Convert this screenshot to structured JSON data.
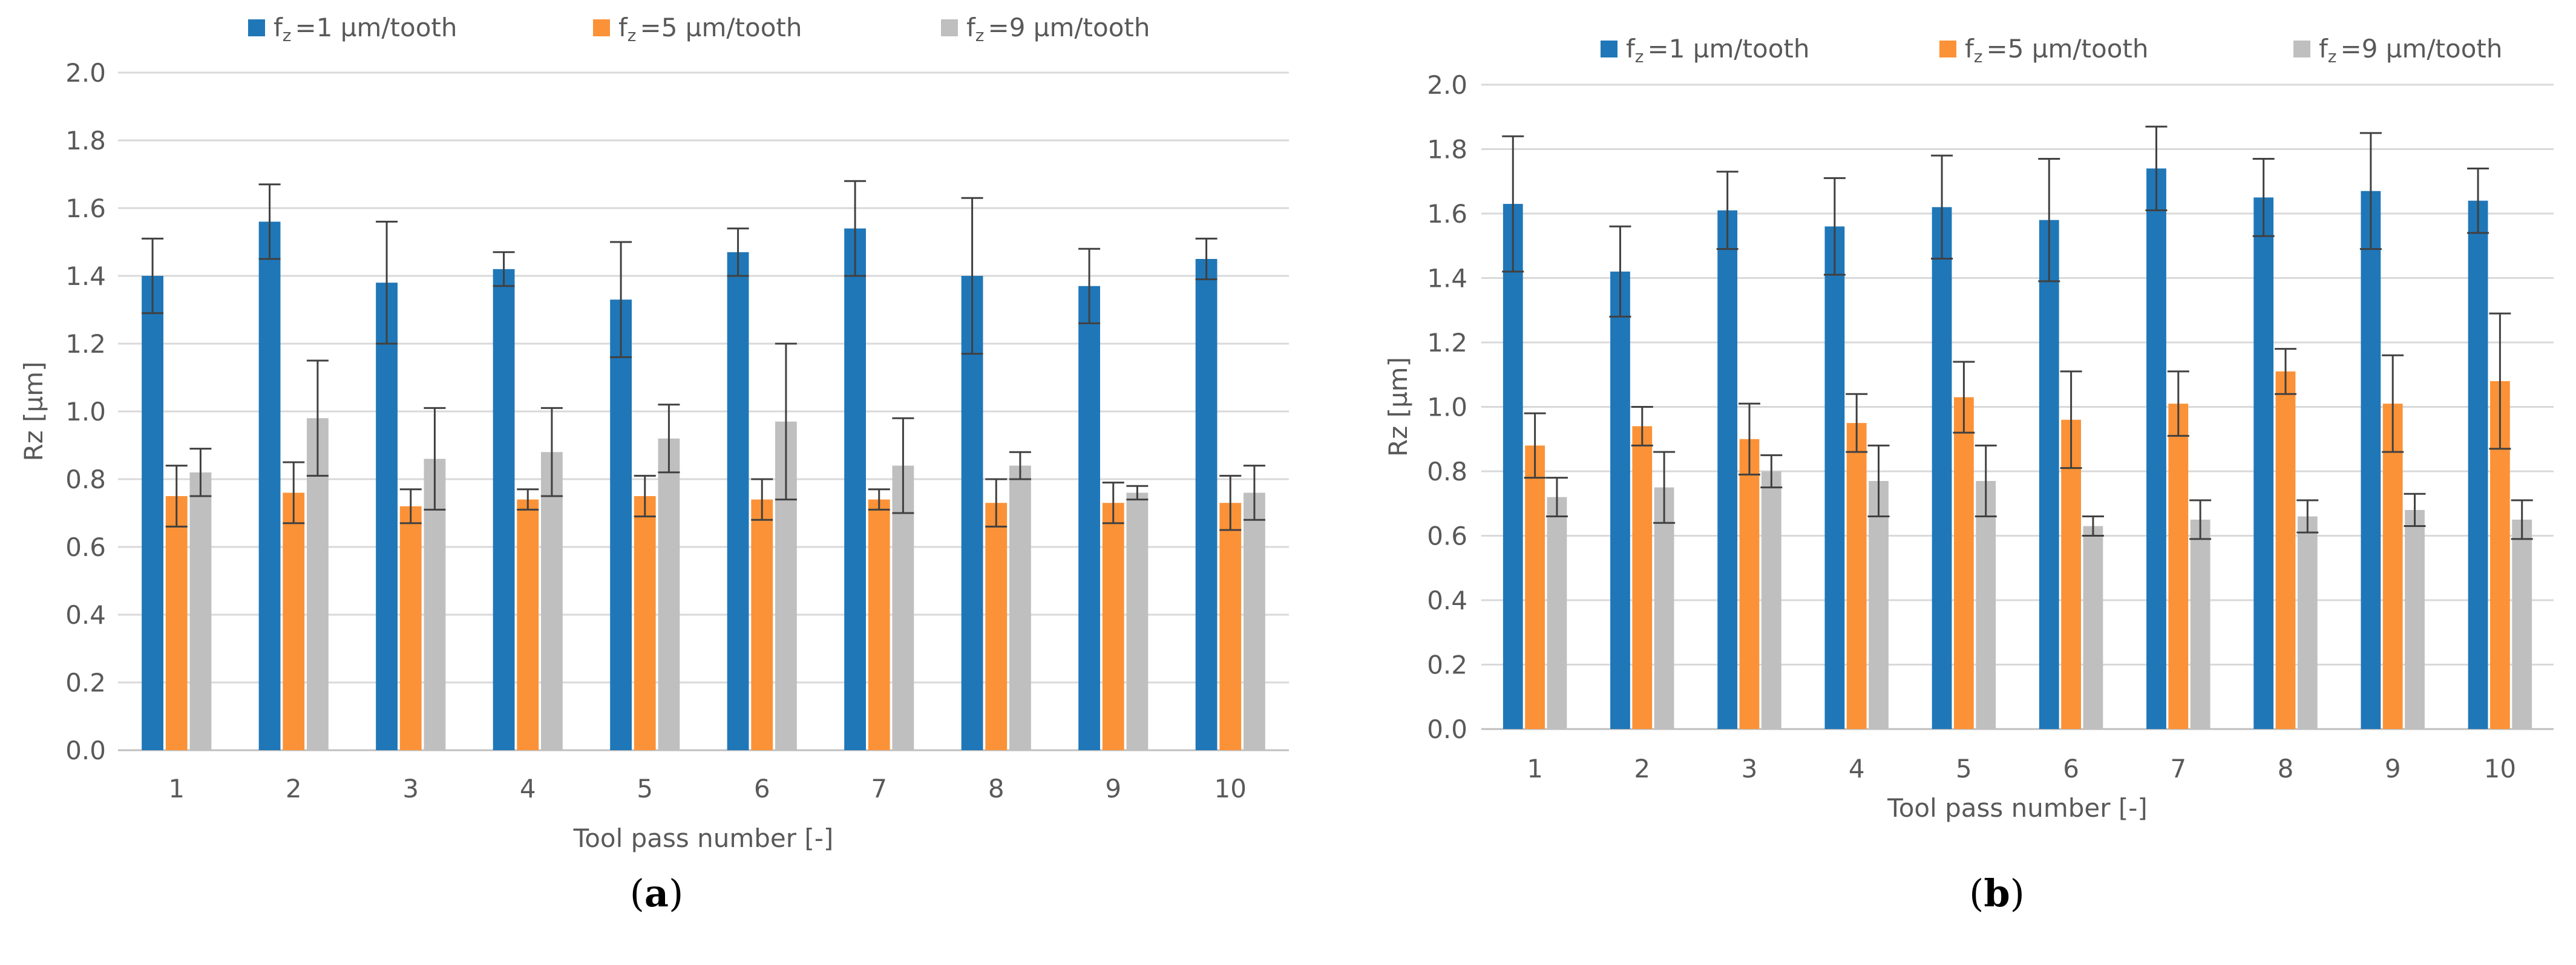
{
  "panel_labels": [
    {
      "open": "(",
      "letter": "a",
      "close": ")"
    },
    {
      "open": "(",
      "letter": "b",
      "close": ")"
    }
  ],
  "chart_data": [
    {
      "type": "bar",
      "panel": "a",
      "categories": [
        "1",
        "2",
        "3",
        "4",
        "5",
        "6",
        "7",
        "8",
        "9",
        "10"
      ],
      "xlabel": "Tool pass number [-]",
      "ylabel": "Rz [µm]",
      "ylim": [
        0,
        2.0
      ],
      "yticks": [
        "0.0",
        "0.2",
        "0.4",
        "0.6",
        "0.8",
        "1.0",
        "1.2",
        "1.4",
        "1.6",
        "1.8",
        "2.0"
      ],
      "grid": true,
      "legend_position": "top",
      "series": [
        {
          "name": "fz=1 µm/tooth",
          "legend_prefix": "f",
          "legend_sub": "z",
          "legend_suffix": "=1 µm/tooth",
          "color": "#1f77b8",
          "values": [
            1.4,
            1.56,
            1.38,
            1.42,
            1.33,
            1.47,
            1.54,
            1.4,
            1.37,
            1.45
          ],
          "errors": [
            0.11,
            0.11,
            0.18,
            0.05,
            0.17,
            0.07,
            0.14,
            0.23,
            0.11,
            0.06
          ]
        },
        {
          "name": "fz=5 µm/tooth",
          "legend_prefix": "f",
          "legend_sub": "z",
          "legend_suffix": "=5 µm/tooth",
          "color": "#fb9237",
          "values": [
            0.75,
            0.76,
            0.72,
            0.74,
            0.75,
            0.74,
            0.74,
            0.73,
            0.73,
            0.73
          ],
          "errors": [
            0.09,
            0.09,
            0.05,
            0.03,
            0.06,
            0.06,
            0.03,
            0.07,
            0.06,
            0.08
          ]
        },
        {
          "name": "fz=9 µm/tooth",
          "legend_prefix": "f",
          "legend_sub": "z",
          "legend_suffix": "=9 µm/tooth",
          "color": "#bfbfbf",
          "values": [
            0.82,
            0.98,
            0.86,
            0.88,
            0.92,
            0.97,
            0.84,
            0.84,
            0.76,
            0.76
          ],
          "errors": [
            0.07,
            0.17,
            0.15,
            0.13,
            0.1,
            0.23,
            0.14,
            0.04,
            0.02,
            0.08
          ]
        }
      ]
    },
    {
      "type": "bar",
      "panel": "b",
      "categories": [
        "1",
        "2",
        "3",
        "4",
        "5",
        "6",
        "7",
        "8",
        "9",
        "10"
      ],
      "xlabel": "Tool pass number [-]",
      "ylabel": "Rz [µm]",
      "ylim": [
        0,
        2.0
      ],
      "yticks": [
        "0.0",
        "0.2",
        "0.4",
        "0.6",
        "0.8",
        "1.0",
        "1.2",
        "1.4",
        "1.6",
        "1.8",
        "2.0"
      ],
      "grid": true,
      "legend_position": "top",
      "series": [
        {
          "name": "fz=1 µm/tooth",
          "legend_prefix": "f",
          "legend_sub": "z",
          "legend_suffix": "=1 µm/tooth",
          "color": "#1f77b8",
          "values": [
            1.63,
            1.42,
            1.61,
            1.56,
            1.62,
            1.58,
            1.74,
            1.65,
            1.67,
            1.64
          ],
          "errors": [
            0.21,
            0.14,
            0.12,
            0.15,
            0.16,
            0.19,
            0.13,
            0.12,
            0.18,
            0.1
          ]
        },
        {
          "name": "fz=5 µm/tooth",
          "legend_prefix": "f",
          "legend_sub": "z",
          "legend_suffix": "=5 µm/tooth",
          "color": "#fb9237",
          "values": [
            0.88,
            0.94,
            0.9,
            0.95,
            1.03,
            0.96,
            1.01,
            1.11,
            1.01,
            1.08
          ],
          "errors": [
            0.1,
            0.06,
            0.11,
            0.09,
            0.11,
            0.15,
            0.1,
            0.07,
            0.15,
            0.21
          ]
        },
        {
          "name": "fz=9 µm/tooth",
          "legend_prefix": "f",
          "legend_sub": "z",
          "legend_suffix": "=9 µm/tooth",
          "color": "#bfbfbf",
          "values": [
            0.72,
            0.75,
            0.8,
            0.77,
            0.77,
            0.63,
            0.65,
            0.66,
            0.68,
            0.65
          ],
          "errors": [
            0.06,
            0.11,
            0.05,
            0.11,
            0.11,
            0.03,
            0.06,
            0.05,
            0.05,
            0.06
          ]
        }
      ]
    }
  ]
}
